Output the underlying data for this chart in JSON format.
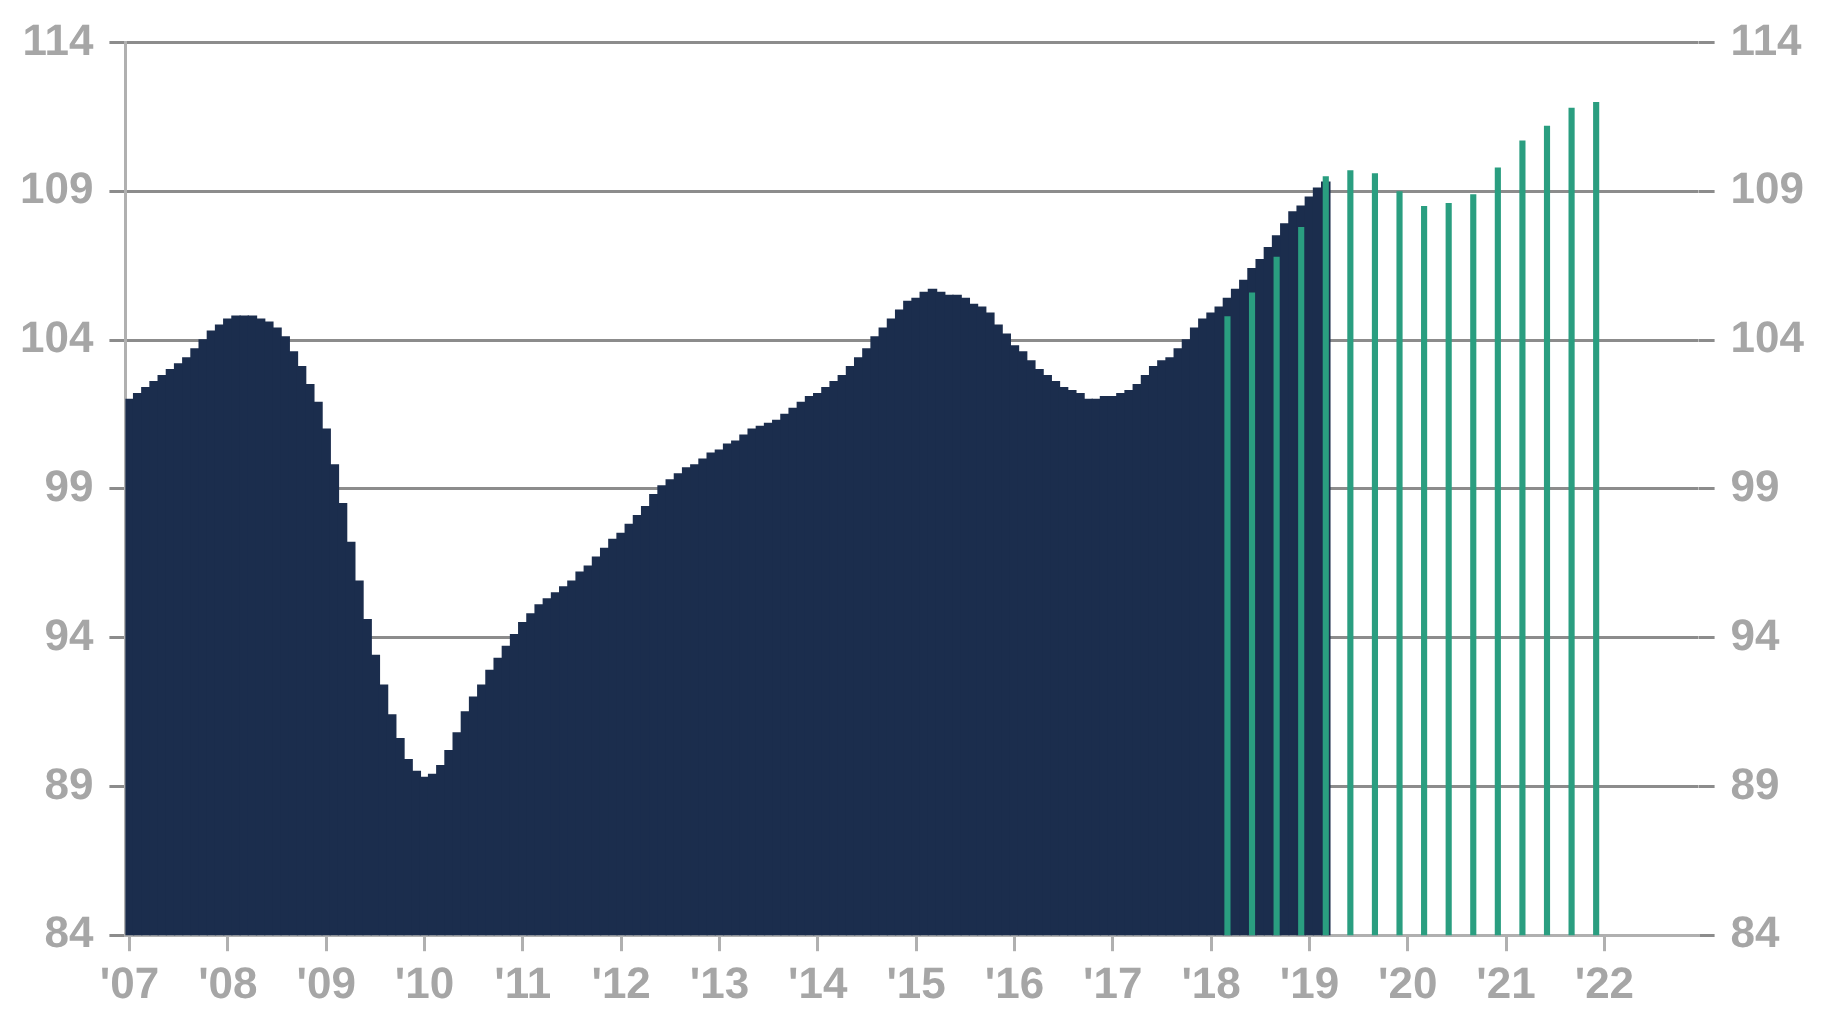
{
  "chart_data": {
    "type": "bar",
    "categories": [
      "'07",
      null,
      null,
      null,
      null,
      null,
      null,
      null,
      null,
      null,
      null,
      null,
      "'08",
      null,
      null,
      null,
      null,
      null,
      null,
      null,
      null,
      null,
      null,
      null,
      "'09",
      null,
      null,
      null,
      null,
      null,
      null,
      null,
      null,
      null,
      null,
      null,
      "'10",
      null,
      null,
      null,
      null,
      null,
      null,
      null,
      null,
      null,
      null,
      null,
      "'11",
      null,
      null,
      null,
      null,
      null,
      null,
      null,
      null,
      null,
      null,
      null,
      "'12",
      null,
      null,
      null,
      null,
      null,
      null,
      null,
      null,
      null,
      null,
      null,
      "'13",
      null,
      null,
      null,
      null,
      null,
      null,
      null,
      null,
      null,
      null,
      null,
      "'14",
      null,
      null,
      null,
      null,
      null,
      null,
      null,
      null,
      null,
      null,
      null,
      "'15",
      null,
      null,
      null,
      null,
      null,
      null,
      null,
      null,
      null,
      null,
      null,
      "'16",
      null,
      null,
      null,
      null,
      null,
      null,
      null,
      null,
      null,
      null,
      null,
      "'17",
      null,
      null,
      null,
      null,
      null,
      null,
      null,
      null,
      null,
      null,
      null,
      "'18",
      null,
      null,
      null,
      null,
      null,
      null,
      null,
      null,
      null,
      null,
      null,
      "'19",
      null,
      null,
      null,
      null,
      null,
      null,
      null,
      null,
      null,
      null,
      null,
      "'20",
      null,
      null,
      null,
      null,
      null,
      null,
      null,
      null,
      null,
      null,
      null,
      "'21",
      null,
      null,
      null,
      null,
      null,
      null,
      null,
      null,
      null,
      null,
      null,
      "'22",
      null,
      null,
      null,
      null,
      null,
      null,
      null,
      null,
      null,
      null,
      null
    ],
    "series": [
      {
        "color": "#1b2d4d",
        "values": [
          102.0,
          102.2,
          102.4,
          102.6,
          102.8,
          103.0,
          103.2,
          103.4,
          103.7,
          104.0,
          104.3,
          104.5,
          104.7,
          104.8,
          104.8,
          104.8,
          104.7,
          104.6,
          104.4,
          104.1,
          103.6,
          103.1,
          102.5,
          101.9,
          101.0,
          99.8,
          98.5,
          97.2,
          95.9,
          94.6,
          93.4,
          92.4,
          91.4,
          90.6,
          89.9,
          89.5,
          89.3,
          89.4,
          89.7,
          90.2,
          90.8,
          91.5,
          92.0,
          92.4,
          92.9,
          93.3,
          93.7,
          94.1,
          94.5,
          94.8,
          95.1,
          95.3,
          95.5,
          95.7,
          95.9,
          96.2,
          96.4,
          96.7,
          97.0,
          97.3,
          97.5,
          97.8,
          98.1,
          98.4,
          98.8,
          99.1,
          99.3,
          99.5,
          99.7,
          99.8,
          100.0,
          100.2,
          100.3,
          100.5,
          100.6,
          100.8,
          101.0,
          101.1,
          101.2,
          101.3,
          101.5,
          101.7,
          101.9,
          102.1,
          102.2,
          102.4,
          102.6,
          102.8,
          103.1,
          103.4,
          103.7,
          104.1,
          104.4,
          104.7,
          105.0,
          105.3,
          105.4,
          105.6,
          105.7,
          105.6,
          105.5,
          105.5,
          105.4,
          105.2,
          105.1,
          104.9,
          104.5,
          104.2,
          103.8,
          103.6,
          103.3,
          103.0,
          102.8,
          102.6,
          102.4,
          102.3,
          102.2,
          102.0,
          102.0,
          102.1,
          102.1,
          102.2,
          102.3,
          102.5,
          102.8,
          103.1,
          103.3,
          103.4,
          103.7,
          104.0,
          104.4,
          104.7,
          104.9,
          105.1,
          105.4,
          105.7,
          106.0,
          106.4,
          106.7,
          107.1,
          107.5,
          107.9,
          108.3,
          108.5,
          108.8,
          109.1,
          109.3,
          null,
          null,
          null,
          null,
          null,
          null,
          null,
          null,
          null,
          null,
          null,
          null,
          null,
          null,
          null,
          null,
          null,
          null,
          null,
          null,
          null,
          null,
          null,
          null,
          null,
          null,
          null,
          null,
          null,
          null,
          null,
          null,
          null,
          null,
          null,
          null,
          null,
          null,
          null,
          null,
          null,
          null,
          null,
          null,
          null
        ]
      },
      {
        "color": "#2a9e80",
        "values": [
          null,
          null,
          null,
          null,
          null,
          null,
          null,
          null,
          null,
          null,
          null,
          null,
          null,
          null,
          null,
          null,
          null,
          null,
          null,
          null,
          null,
          null,
          null,
          null,
          null,
          null,
          null,
          null,
          null,
          null,
          null,
          null,
          null,
          null,
          null,
          null,
          null,
          null,
          null,
          null,
          null,
          null,
          null,
          null,
          null,
          null,
          null,
          null,
          null,
          null,
          null,
          null,
          null,
          null,
          null,
          null,
          null,
          null,
          null,
          null,
          null,
          null,
          null,
          null,
          null,
          null,
          null,
          null,
          null,
          null,
          null,
          null,
          null,
          null,
          null,
          null,
          null,
          null,
          null,
          null,
          null,
          null,
          null,
          null,
          null,
          null,
          null,
          null,
          null,
          null,
          null,
          null,
          null,
          null,
          null,
          null,
          null,
          null,
          null,
          null,
          null,
          null,
          null,
          null,
          null,
          null,
          null,
          null,
          null,
          null,
          null,
          null,
          null,
          null,
          null,
          null,
          null,
          null,
          null,
          null,
          null,
          null,
          null,
          null,
          null,
          null,
          null,
          null,
          null,
          null,
          null,
          null,
          null,
          null,
          104.8,
          null,
          null,
          105.6,
          null,
          null,
          106.8,
          null,
          null,
          107.8,
          null,
          null,
          109.5,
          null,
          null,
          109.7,
          null,
          null,
          109.6,
          null,
          null,
          109.0,
          null,
          null,
          108.5,
          null,
          null,
          108.6,
          null,
          null,
          108.9,
          null,
          null,
          109.8,
          null,
          null,
          110.7,
          null,
          null,
          111.2,
          null,
          null,
          111.8,
          null,
          null,
          112.0,
          null,
          null,
          null,
          null,
          null,
          null,
          null,
          null,
          null,
          null,
          null,
          null
        ]
      }
    ],
    "ylim": [
      84,
      114
    ],
    "yticks": [
      84,
      89,
      94,
      99,
      104,
      109,
      114
    ],
    "y2lim": [
      84,
      114
    ],
    "y2ticks": [
      84,
      89,
      94,
      99,
      104,
      109,
      114
    ],
    "grid": "y",
    "legend": false
  }
}
